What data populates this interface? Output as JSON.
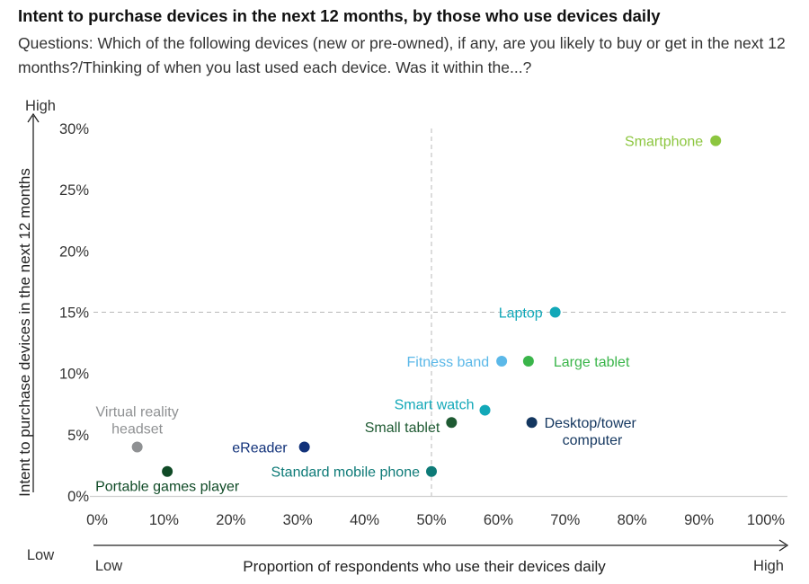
{
  "title": "Intent to purchase devices in the next 12 months, by those who use devices daily",
  "subtitle": "Questions: Which of the following devices (new or pre-owned), if any, are you likely to buy or get in the next 12 months?/Thinking of when you last used each device. Was it within the...?",
  "axes": {
    "y_high": "High",
    "y_low": "Low",
    "x_low": "Low",
    "x_high": "High"
  },
  "chart_data": {
    "type": "scatter",
    "title": "Intent to purchase devices in the next 12 months, by those who use devices daily",
    "xlabel": "Proportion of respondents who use their devices daily",
    "ylabel": "Intent to purchase devices in the next 12 months",
    "xlim": [
      0,
      100
    ],
    "ylim": [
      0,
      30
    ],
    "x_ticks": [
      "0%",
      "10%",
      "20%",
      "30%",
      "40%",
      "50%",
      "60%",
      "70%",
      "80%",
      "90%",
      "100%"
    ],
    "y_ticks": [
      "0%",
      "5%",
      "10%",
      "15%",
      "20%",
      "25%",
      "30%"
    ],
    "grid": false,
    "reference_lines": {
      "x": 50,
      "y": 15
    },
    "points": [
      {
        "label": "Smartphone",
        "x": 92.5,
        "y": 29,
        "color": "#8cc63f"
      },
      {
        "label": "Laptop",
        "x": 68.5,
        "y": 15,
        "color": "#12a8b8"
      },
      {
        "label": "Fitness band",
        "x": 60.5,
        "y": 11,
        "color": "#5bb8e8"
      },
      {
        "label": "Large tablet",
        "x": 64.5,
        "y": 11,
        "color": "#3ab54a"
      },
      {
        "label": "Smart watch",
        "x": 58,
        "y": 7,
        "color": "#12a8b8"
      },
      {
        "label": "Small tablet",
        "x": 53,
        "y": 6,
        "color": "#1e5a32"
      },
      {
        "label": "Desktop/tower computer",
        "x": 65,
        "y": 6,
        "color": "#13365f"
      },
      {
        "label": "Virtual reality headset",
        "x": 6,
        "y": 4,
        "color": "#8f9193"
      },
      {
        "label": "eReader",
        "x": 31,
        "y": 4,
        "color": "#12327a"
      },
      {
        "label": "Portable games player",
        "x": 10.5,
        "y": 2,
        "color": "#0f4a26"
      },
      {
        "label": "Standard mobile phone",
        "x": 50,
        "y": 2,
        "color": "#0d7a77"
      }
    ]
  }
}
